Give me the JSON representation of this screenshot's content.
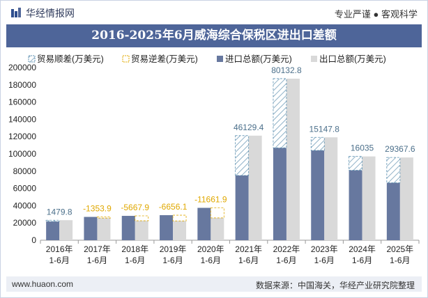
{
  "header": {
    "brand": "华经情报网",
    "tagline": "专业严谨 ● 客观科学"
  },
  "footer": {
    "website": "www.huaon.com",
    "source": "数据来源：中国海关，华经产业研究院整理"
  },
  "colors": {
    "import": "#67789f",
    "export": "#d9d9d9",
    "surplus_hatch": "#5b8fb0",
    "deficit_label": "#e0a800",
    "surplus_label": "#4b6f8a",
    "title_bg": "#4e6599"
  },
  "chart_data": {
    "type": "bar",
    "title": "2016-2025年6月威海综合保税区进出口差额",
    "categories": [
      "2016年\n1-6月",
      "2017年\n1-6月",
      "2018年\n1-6月",
      "2019年\n1-6月",
      "2020年\n1-6月",
      "2021年\n1-6月",
      "2022年\n1-6月",
      "2023年\n1-6月",
      "2024年\n1-6月",
      "2025年\n1-6月"
    ],
    "series": [
      {
        "name": "进口总额(万美元)",
        "values": [
          21700,
          27000,
          28200,
          29000,
          37500,
          75000,
          107000,
          104000,
          81000,
          66500
        ]
      },
      {
        "name": "出口总额(万美元)",
        "values": [
          23180,
          25646,
          22532,
          22344,
          25838,
          121129,
          187133,
          119148,
          97035,
          95868
        ]
      }
    ],
    "balance": {
      "surplus_name": "贸易顺差(万美元)",
      "deficit_name": "贸易逆差(万美元)",
      "labels": [
        "1479.8",
        "-1353.9",
        "-5667.9",
        "-6656.1",
        "-11661.9",
        "46129.4",
        "80132.8",
        "15147.8",
        "16035",
        "29367.6"
      ]
    },
    "ylim": [
      0,
      200000
    ],
    "yticks": [
      0,
      20000,
      40000,
      60000,
      80000,
      100000,
      120000,
      140000,
      160000,
      180000,
      200000
    ],
    "legend_position": "top",
    "grid": false
  }
}
